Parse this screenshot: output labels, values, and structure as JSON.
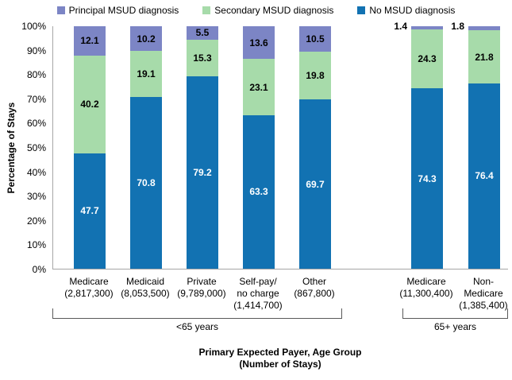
{
  "legend": {
    "items": [
      {
        "label": "Principal MSUD diagnosis",
        "color": "#7C85C5"
      },
      {
        "label": "Secondary MSUD diagnosis",
        "color": "#A7DBAA"
      },
      {
        "label": "No MSUD diagnosis",
        "color": "#1272B2"
      }
    ],
    "position": "top"
  },
  "chart_data": {
    "type": "bar",
    "stacked": true,
    "units": "percent",
    "title": "",
    "ylabel": "Percentage of Stays",
    "xlabel_line1": "Primary Expected Payer, Age Group",
    "xlabel_line2": "(Number of Stays)",
    "ylim": [
      0,
      100
    ],
    "ytick_step": 10,
    "yticks": [
      "0%",
      "10%",
      "20%",
      "30%",
      "40%",
      "50%",
      "60%",
      "70%",
      "80%",
      "90%",
      "100%"
    ],
    "grid": "off",
    "series_order_bottom_to_top": [
      "No MSUD diagnosis",
      "Secondary MSUD diagnosis",
      "Principal MSUD diagnosis"
    ],
    "colors": {
      "no_msud": "#1272B2",
      "secondary": "#A7DBAA",
      "principal": "#7C85C5"
    },
    "groups": [
      {
        "label": "<65 years",
        "bars": [
          {
            "category_lines": [
              "Medicare",
              "(2,817,300)"
            ],
            "no_msud": 47.7,
            "secondary": 40.2,
            "principal": 12.1
          },
          {
            "category_lines": [
              "Medicaid",
              "(8,053,500)"
            ],
            "no_msud": 70.8,
            "secondary": 19.1,
            "principal": 10.2
          },
          {
            "category_lines": [
              "Private",
              "(9,789,000)"
            ],
            "no_msud": 79.2,
            "secondary": 15.3,
            "principal": 5.5
          },
          {
            "category_lines": [
              "Self-pay/",
              "no charge",
              "(1,414,700)"
            ],
            "no_msud": 63.3,
            "secondary": 23.1,
            "principal": 13.6
          },
          {
            "category_lines": [
              "Other",
              "(867,800)"
            ],
            "no_msud": 69.7,
            "secondary": 19.8,
            "principal": 10.5
          }
        ]
      },
      {
        "label": "65+ years",
        "bars": [
          {
            "category_lines": [
              "Medicare",
              "(11,300,400)"
            ],
            "no_msud": 74.3,
            "secondary": 24.3,
            "principal": 1.4,
            "principal_label_outside": true
          },
          {
            "category_lines": [
              "Non-",
              "Medicare",
              "(1,385,400)"
            ],
            "no_msud": 76.4,
            "secondary": 21.8,
            "principal": 1.8,
            "principal_label_outside": true
          }
        ]
      }
    ]
  }
}
